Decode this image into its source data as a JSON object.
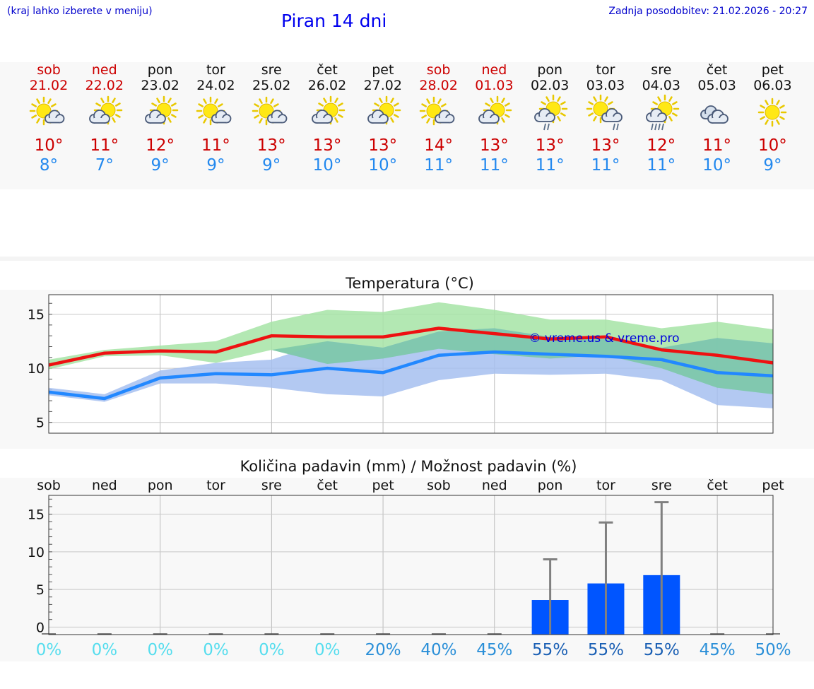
{
  "header": {
    "hint": "(kraj lahko izberete v meniju)",
    "title": "Piran 14 dni",
    "updated": "Zadnja posodobitev: 21.02.2026 - 20:27"
  },
  "days": [
    {
      "name": "sob",
      "date": "21.02",
      "weekend": true,
      "icon": "sun-cloud-icon",
      "tmax": "10°",
      "tmin": "8°"
    },
    {
      "name": "ned",
      "date": "22.02",
      "weekend": true,
      "icon": "cloud-sun-icon",
      "tmax": "11°",
      "tmin": "7°"
    },
    {
      "name": "pon",
      "date": "23.02",
      "weekend": false,
      "icon": "cloud-sun-icon",
      "tmax": "12°",
      "tmin": "9°"
    },
    {
      "name": "tor",
      "date": "24.02",
      "weekend": false,
      "icon": "sun-cloud-icon",
      "tmax": "11°",
      "tmin": "9°"
    },
    {
      "name": "sre",
      "date": "25.02",
      "weekend": false,
      "icon": "sun-cloud-icon",
      "tmax": "13°",
      "tmin": "9°"
    },
    {
      "name": "čet",
      "date": "26.02",
      "weekend": false,
      "icon": "cloud-sun-icon",
      "tmax": "13°",
      "tmin": "10°"
    },
    {
      "name": "pet",
      "date": "27.02",
      "weekend": false,
      "icon": "cloud-sun-icon",
      "tmax": "13°",
      "tmin": "10°"
    },
    {
      "name": "sob",
      "date": "28.02",
      "weekend": true,
      "icon": "sun-cloud-icon",
      "tmax": "14°",
      "tmin": "11°"
    },
    {
      "name": "ned",
      "date": "01.03",
      "weekend": true,
      "icon": "cloud-sun-icon",
      "tmax": "13°",
      "tmin": "11°"
    },
    {
      "name": "pon",
      "date": "02.03",
      "weekend": false,
      "icon": "cloud-sun-rain-icon",
      "tmax": "13°",
      "tmin": "11°"
    },
    {
      "name": "tor",
      "date": "03.03",
      "weekend": false,
      "icon": "sun-cloud-rain-icon",
      "tmax": "13°",
      "tmin": "11°"
    },
    {
      "name": "sre",
      "date": "04.03",
      "weekend": false,
      "icon": "cloud-sun-heavy-rain-icon",
      "tmax": "12°",
      "tmin": "11°"
    },
    {
      "name": "čet",
      "date": "05.03",
      "weekend": false,
      "icon": "cloudy-icon",
      "tmax": "11°",
      "tmin": "10°"
    },
    {
      "name": "pet",
      "date": "06.03",
      "weekend": false,
      "icon": "sun-icon",
      "tmax": "10°",
      "tmin": "9°"
    }
  ],
  "colors": {
    "max_line": "#ee1111",
    "min_line": "#2288ff",
    "max_band": "#a6e4a6",
    "min_band": "#a6bff0",
    "overlap": "#7cc8a8",
    "bar": "#0055ff",
    "whisker": "#808080",
    "weekend": "#cc0000",
    "watermark": "#0000dd"
  },
  "chart_data": [
    {
      "type": "line",
      "title": "Temperatura (°C)",
      "watermark": "© vreme.us & vreme.pro",
      "ylim": [
        4,
        16.8
      ],
      "yticks": [
        5,
        10,
        15
      ],
      "x": [
        0,
        1,
        2,
        3,
        4,
        5,
        6,
        7,
        8,
        9,
        10,
        11,
        12,
        13
      ],
      "series": [
        {
          "name": "max",
          "values": [
            10.3,
            11.4,
            11.6,
            11.5,
            13.0,
            12.9,
            12.9,
            13.7,
            13.2,
            12.7,
            12.9,
            11.7,
            11.2,
            10.5
          ],
          "band_low": [
            9.9,
            11.1,
            11.2,
            10.5,
            11.7,
            10.4,
            10.9,
            11.8,
            11.3,
            10.9,
            11.2,
            10.0,
            8.2,
            7.6
          ],
          "band_high": [
            10.8,
            11.7,
            12.1,
            12.5,
            14.3,
            15.4,
            15.2,
            16.1,
            15.4,
            14.5,
            14.5,
            13.7,
            14.3,
            13.6
          ]
        },
        {
          "name": "min",
          "values": [
            7.8,
            7.2,
            9.1,
            9.5,
            9.4,
            10.0,
            9.6,
            11.2,
            11.5,
            11.3,
            11.1,
            10.8,
            9.6,
            9.3
          ],
          "band_low": [
            7.5,
            6.9,
            8.6,
            8.6,
            8.2,
            7.6,
            7.4,
            8.9,
            9.5,
            9.4,
            9.5,
            8.9,
            6.6,
            6.3
          ],
          "band_high": [
            8.2,
            7.6,
            9.8,
            10.5,
            10.8,
            12.5,
            11.9,
            13.4,
            13.7,
            12.9,
            12.7,
            11.9,
            12.8,
            12.3
          ]
        }
      ]
    },
    {
      "type": "bar",
      "title": "Količina padavin (mm) / Možnost padavin (%)",
      "categories": [
        "sob",
        "ned",
        "pon",
        "tor",
        "sre",
        "čet",
        "pet",
        "sob",
        "ned",
        "pon",
        "tor",
        "sre",
        "čet",
        "pet"
      ],
      "values": [
        0,
        0,
        0,
        0,
        0,
        0,
        0,
        0,
        0,
        3.6,
        5.8,
        6.9,
        0,
        0
      ],
      "error_high": [
        0,
        0,
        0,
        0,
        0,
        0,
        0,
        0,
        0,
        9.0,
        13.9,
        16.6,
        0,
        0
      ],
      "probability": [
        "0%",
        "0%",
        "0%",
        "0%",
        "0%",
        "0%",
        "20%",
        "40%",
        "45%",
        "55%",
        "55%",
        "55%",
        "45%",
        "50%"
      ],
      "probability_values": [
        0,
        0,
        0,
        0,
        0,
        0,
        20,
        40,
        45,
        55,
        55,
        55,
        45,
        50
      ],
      "ylim": [
        -1,
        17.5
      ],
      "yticks": [
        0,
        5,
        10,
        15
      ]
    }
  ]
}
